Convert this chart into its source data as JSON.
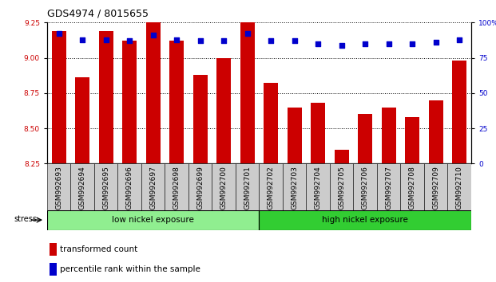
{
  "title": "GDS4974 / 8015655",
  "samples": [
    "GSM992693",
    "GSM992694",
    "GSM992695",
    "GSM992696",
    "GSM992697",
    "GSM992698",
    "GSM992699",
    "GSM992700",
    "GSM992701",
    "GSM992702",
    "GSM992703",
    "GSM992704",
    "GSM992705",
    "GSM992706",
    "GSM992707",
    "GSM992708",
    "GSM992709",
    "GSM992710"
  ],
  "transformed_count": [
    9.19,
    8.86,
    9.19,
    9.12,
    9.25,
    9.12,
    8.88,
    9.0,
    9.25,
    8.82,
    8.65,
    8.68,
    8.35,
    8.6,
    8.65,
    8.58,
    8.7,
    8.98
  ],
  "percentile_rank": [
    92,
    88,
    88,
    87,
    91,
    88,
    87,
    87,
    92,
    87,
    87,
    85,
    84,
    85,
    85,
    85,
    86,
    88
  ],
  "ylim_left": [
    8.25,
    9.25
  ],
  "ylim_right": [
    0,
    100
  ],
  "yticks_left": [
    8.25,
    8.5,
    8.75,
    9.0,
    9.25
  ],
  "yticks_right": [
    0,
    25,
    50,
    75,
    100
  ],
  "bar_color": "#cc0000",
  "dot_color": "#0000cc",
  "bg_color": "#ffffff",
  "group1_label": "low nickel exposure",
  "group2_label": "high nickel exposure",
  "group1_color": "#90ee90",
  "group2_color": "#32cd32",
  "group1_count": 9,
  "stress_label": "stress",
  "legend_bar_label": "transformed count",
  "legend_dot_label": "percentile rank within the sample",
  "title_fontsize": 9,
  "tick_fontsize": 6.5,
  "group_fontsize": 7.5,
  "legend_fontsize": 7.5
}
